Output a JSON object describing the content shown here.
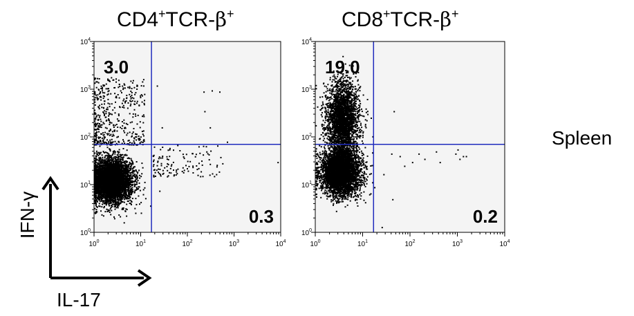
{
  "titles": [
    {
      "main": "CD4",
      "sup1": "+",
      "mid": "TCR-",
      "greek": "β",
      "sup2": "+"
    },
    {
      "main": "CD8",
      "sup1": "+",
      "mid": "TCR-",
      "greek": "β",
      "sup2": "+"
    }
  ],
  "tissue_label": "Spleen",
  "axis_labels": {
    "y": "IFN-γ",
    "x": "IL-17"
  },
  "colors": {
    "gate": "#1f2bbd",
    "dot": "#000000",
    "plot_bg": "#f4f4f4",
    "frame": "#000000"
  },
  "chart_data": [
    {
      "type": "scatter",
      "title": "CD4+TCR-β+",
      "xscale": "log",
      "yscale": "log",
      "xlim": [
        1,
        10000
      ],
      "ylim": [
        1,
        10000
      ],
      "x_ticks": [
        "10^0",
        "10^1",
        "10^2",
        "10^3",
        "10^4"
      ],
      "y_ticks": [
        "10^0",
        "10^1",
        "10^2",
        "10^3",
        "10^4"
      ],
      "gate": {
        "x": 17,
        "y": 70
      },
      "quadrant_labels": {
        "upper_left": "3.0",
        "lower_right": "0.3"
      },
      "populations": [
        {
          "region": "main cluster",
          "count": 5200,
          "x_log_mean": 0.35,
          "x_log_sd": 0.22,
          "y_log_mean": 1.1,
          "y_log_sd": 0.22
        },
        {
          "region": "IFN-γ+ IL-17-",
          "count": 450,
          "x_range": [
            1,
            12
          ],
          "y_range": [
            70,
            1800
          ]
        },
        {
          "region": "IL-17+ IFN-γ-",
          "count": 120,
          "x_range": [
            18,
            600
          ],
          "y_range": [
            15,
            70
          ]
        }
      ],
      "outlier_points": [
        [
          220,
          900
        ],
        [
          330,
          950
        ],
        [
          480,
          900
        ],
        [
          230,
          350
        ],
        [
          300,
          160
        ],
        [
          22,
          1200
        ],
        [
          28,
          160
        ],
        [
          700,
          80
        ],
        [
          8500,
          30
        ]
      ]
    },
    {
      "type": "scatter",
      "title": "CD8+TCR-β+",
      "xscale": "log",
      "yscale": "log",
      "xlim": [
        1,
        10000
      ],
      "ylim": [
        1,
        10000
      ],
      "x_ticks": [
        "10^0",
        "10^1",
        "10^2",
        "10^3",
        "10^4"
      ],
      "y_ticks": [
        "10^0",
        "10^1",
        "10^2",
        "10^3",
        "10^4"
      ],
      "gate": {
        "x": 17,
        "y": 70
      },
      "quadrant_labels": {
        "upper_left": "19.0",
        "lower_right": "0.2"
      },
      "populations": [
        {
          "region": "main cluster",
          "count": 4200,
          "x_log_mean": 0.52,
          "x_log_sd": 0.2,
          "y_log_mean": 1.28,
          "y_log_sd": 0.24
        },
        {
          "region": "IFN-γ+ IL-17-",
          "count": 2600,
          "x_log_mean": 0.56,
          "x_log_sd": 0.17,
          "y_log_mean": 2.4,
          "y_log_sd": 0.4
        }
      ],
      "outlier_points": [
        [
          45,
          350
        ],
        [
          60,
          40
        ],
        [
          75,
          25
        ],
        [
          110,
          30
        ],
        [
          150,
          45
        ],
        [
          200,
          35
        ],
        [
          350,
          50
        ],
        [
          420,
          30
        ],
        [
          900,
          45
        ],
        [
          1000,
          55
        ],
        [
          1100,
          35
        ],
        [
          1300,
          40
        ],
        [
          42,
          5
        ],
        [
          40,
          45
        ],
        [
          1500,
          40
        ],
        [
          25,
          1.3
        ]
      ]
    }
  ]
}
